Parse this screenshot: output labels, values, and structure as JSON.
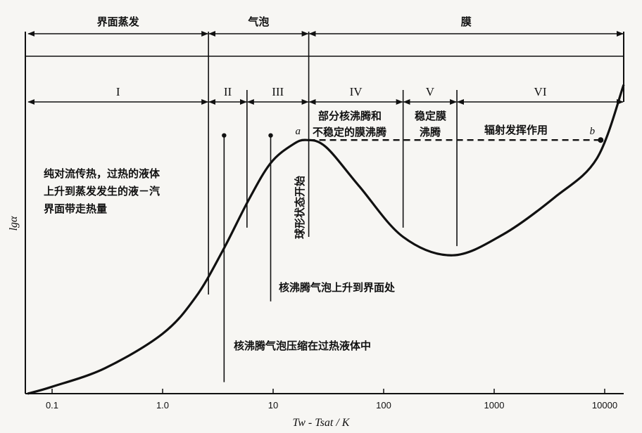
{
  "chart_data": {
    "type": "line",
    "title": "",
    "xlabel": "Tw - Tsat / K",
    "ylabel": "lgα",
    "xscale": "log",
    "xlim": [
      0.06,
      16000
    ],
    "x_ticks": [
      {
        "value": 0.1,
        "label": "0.1"
      },
      {
        "value": 1,
        "label": "1.0"
      },
      {
        "value": 10,
        "label": "10"
      },
      {
        "value": 100,
        "label": "100"
      },
      {
        "value": 1000,
        "label": "1000"
      },
      {
        "value": 10000,
        "label": "10000"
      }
    ],
    "series": [
      {
        "name": "boiling curve",
        "x": [
          0.06,
          0.1,
          0.3,
          1.0,
          2.0,
          3.5,
          6.0,
          9.5,
          15,
          20,
          30,
          60,
          150,
          420,
          1200,
          3500,
          8500,
          16000
        ],
        "y": [
          0.0,
          0.03,
          0.11,
          0.26,
          0.42,
          0.62,
          0.84,
          1.0,
          1.08,
          1.1,
          1.07,
          0.9,
          0.68,
          0.6,
          0.69,
          0.85,
          1.02,
          1.34
        ]
      }
    ],
    "regimes": [
      {
        "label": "界面蒸发",
        "x_from": 0.06,
        "x_to": 2.6
      },
      {
        "label": "气泡",
        "x_from": 2.6,
        "x_to": 21
      },
      {
        "label": "膜",
        "x_from": 21,
        "x_to": 16000
      }
    ],
    "zones": [
      {
        "label": "I",
        "x_from": 0.06,
        "x_to": 2.6
      },
      {
        "label": "II",
        "x_from": 2.6,
        "x_to": 5.8
      },
      {
        "label": "III",
        "x_from": 5.8,
        "x_to": 21
      },
      {
        "label": "IV",
        "x_from": 21,
        "x_to": 150
      },
      {
        "label": "V",
        "x_from": 150,
        "x_to": 460
      },
      {
        "label": "VI",
        "x_from": 460,
        "x_to": 16000
      }
    ],
    "boundaries": [
      {
        "x": 2.6,
        "y_bottom": 0.43
      },
      {
        "x": 5.8,
        "y_bottom": 0.72
      },
      {
        "x": 21,
        "y_bottom": 0.68
      },
      {
        "x": 150,
        "y_bottom": 0.72
      },
      {
        "x": 460,
        "y_bottom": 0.64
      }
    ],
    "dashed_line": {
      "x_from": 21,
      "x_to": 9200,
      "y": 1.1
    },
    "points": [
      {
        "label": "a",
        "x": 20,
        "y": 1.1
      },
      {
        "label": "b",
        "x": 9200,
        "y": 1.1
      }
    ],
    "markers": [
      {
        "x": 3.6,
        "y_top": 1.12,
        "y_bottom": 0.05
      },
      {
        "x": 9.5,
        "y_top": 1.12,
        "y_bottom": 0.4
      }
    ],
    "annotations": {
      "zone_I_text": [
        "纯对流传热，过热的液体",
        "上升到蒸发发生的液－汽",
        "界面带走热量"
      ],
      "zone_IV_text": [
        "部分核沸腾和",
        "不稳定的膜沸腾"
      ],
      "zone_V_text": [
        "稳定膜",
        "沸腾"
      ],
      "zone_VI_text": "辐射发挥作用",
      "vertical_text": "球形状态开始",
      "marker_high_text": "核沸腾气泡上升到界面处",
      "marker_low_text": "核沸腾气泡压缩在过热液体中"
    }
  }
}
